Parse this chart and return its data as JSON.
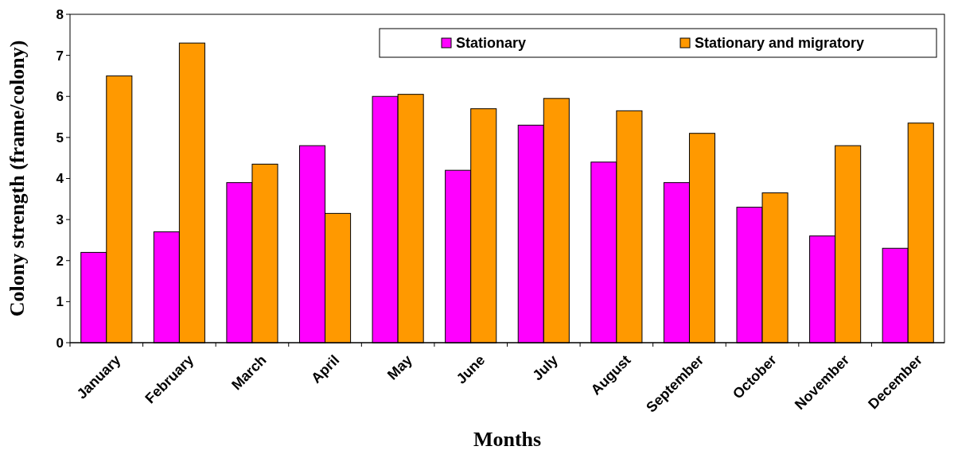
{
  "chart_data": {
    "type": "bar",
    "xlabel": "Months",
    "ylabel": "Colony strength (frame/colony)",
    "categories": [
      "January",
      "February",
      "March",
      "April",
      "May",
      "June",
      "July",
      "August",
      "September",
      "October",
      "November",
      "December"
    ],
    "series": [
      {
        "name": "Stationary",
        "color": "#ff00ff",
        "values": [
          2.2,
          2.7,
          3.9,
          4.8,
          6.0,
          4.2,
          5.3,
          4.4,
          3.9,
          3.3,
          2.6,
          2.3
        ]
      },
      {
        "name": "Stationary and migratory",
        "color": "#ff9900",
        "values": [
          6.5,
          7.3,
          4.35,
          3.15,
          6.05,
          5.7,
          5.95,
          5.65,
          5.1,
          3.65,
          4.8,
          5.35
        ]
      }
    ],
    "ylim": [
      0,
      8
    ],
    "yticks": [
      0,
      1,
      2,
      3,
      4,
      5,
      6,
      7,
      8
    ],
    "grid": false,
    "legend": "top right"
  }
}
